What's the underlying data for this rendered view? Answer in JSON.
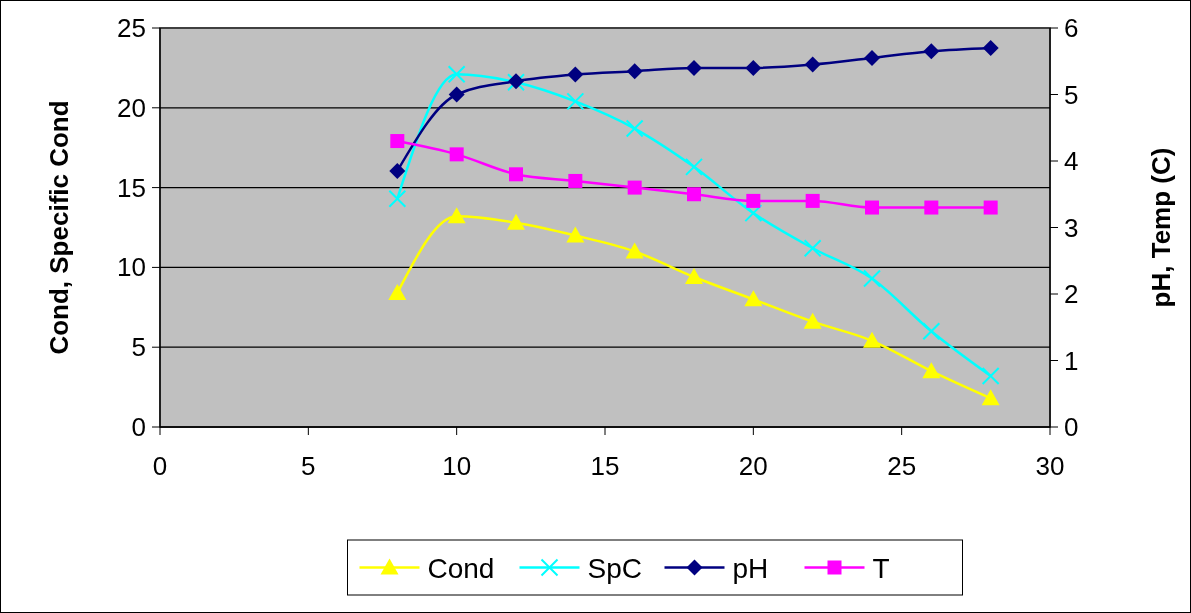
{
  "chart_data": {
    "type": "line",
    "x": [
      8,
      10,
      12,
      14,
      16,
      18,
      20,
      22,
      24,
      26,
      28
    ],
    "ylabel": "Cond, Specific Cond",
    "y2label": "pH, Temp (C)",
    "xlim": [
      0,
      30
    ],
    "xticks": [
      0,
      5,
      10,
      15,
      20,
      25,
      30
    ],
    "ylim": [
      0,
      25
    ],
    "yticks": [
      0,
      5,
      10,
      15,
      20,
      25
    ],
    "y2lim": [
      0,
      6
    ],
    "y2ticks": [
      0,
      1,
      2,
      3,
      4,
      5,
      6
    ],
    "grid": "y",
    "legend": "bottom",
    "series": [
      {
        "name": "Cond",
        "color": "#ffff00",
        "marker": "triangle",
        "values": [
          8.4,
          13.2,
          12.8,
          12.0,
          11.0,
          9.4,
          8.0,
          6.6,
          5.4,
          3.5,
          1.8
        ]
      },
      {
        "name": "SpC",
        "color": "#00ffff",
        "marker": "cross",
        "values": [
          14.3,
          22.1,
          21.6,
          20.4,
          18.7,
          16.3,
          13.4,
          11.2,
          9.3,
          6.0,
          3.2
        ]
      },
      {
        "name": "pH",
        "color": "#000080",
        "marker": "diamond",
        "axis": "y2",
        "values": [
          3.85,
          5.0,
          5.2,
          5.3,
          5.35,
          5.4,
          5.4,
          5.45,
          5.55,
          5.65,
          5.7
        ]
      },
      {
        "name": "T",
        "color": "#ff00ff",
        "marker": "square",
        "axis": "y2",
        "values": [
          4.3,
          4.1,
          3.8,
          3.7,
          3.6,
          3.5,
          3.4,
          3.4,
          3.3,
          3.3,
          3.3
        ]
      }
    ]
  }
}
